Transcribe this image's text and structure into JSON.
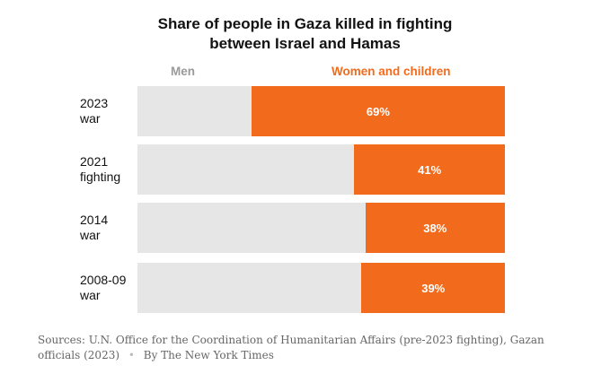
{
  "chart_data": {
    "type": "bar",
    "orientation": "horizontal",
    "stacked": true,
    "title": "Share of people in Gaza killed in fighting between Israel and Hamas",
    "title_lines": [
      "Share of people in Gaza killed in fighting",
      "between Israel and Hamas"
    ],
    "legend": [
      {
        "name": "Men",
        "color": "#e6e6e6",
        "label_color": "#9a9a9a"
      },
      {
        "name": "Women and children",
        "color": "#f26b1d",
        "label_color": "#f26b1d"
      }
    ],
    "categories": [
      {
        "lines": [
          "2023",
          "war"
        ]
      },
      {
        "lines": [
          "2021",
          "fighting"
        ]
      },
      {
        "lines": [
          "2014",
          "war"
        ]
      },
      {
        "lines": [
          "2008-09",
          "war"
        ]
      }
    ],
    "series": [
      {
        "name": "Women and children",
        "values": [
          69,
          41,
          38,
          39
        ],
        "labels": [
          "69%",
          "41%",
          "38%",
          "39%"
        ]
      }
    ],
    "xlim": [
      0,
      100
    ],
    "grid": false,
    "legend_position": "top"
  },
  "footer": {
    "sources": "Sources: U.N. Office for the Coordination of Humanitarian Affairs (pre-2023 fighting), Gazan officials (2023)",
    "dot": "•",
    "credit": "By The New York Times"
  }
}
